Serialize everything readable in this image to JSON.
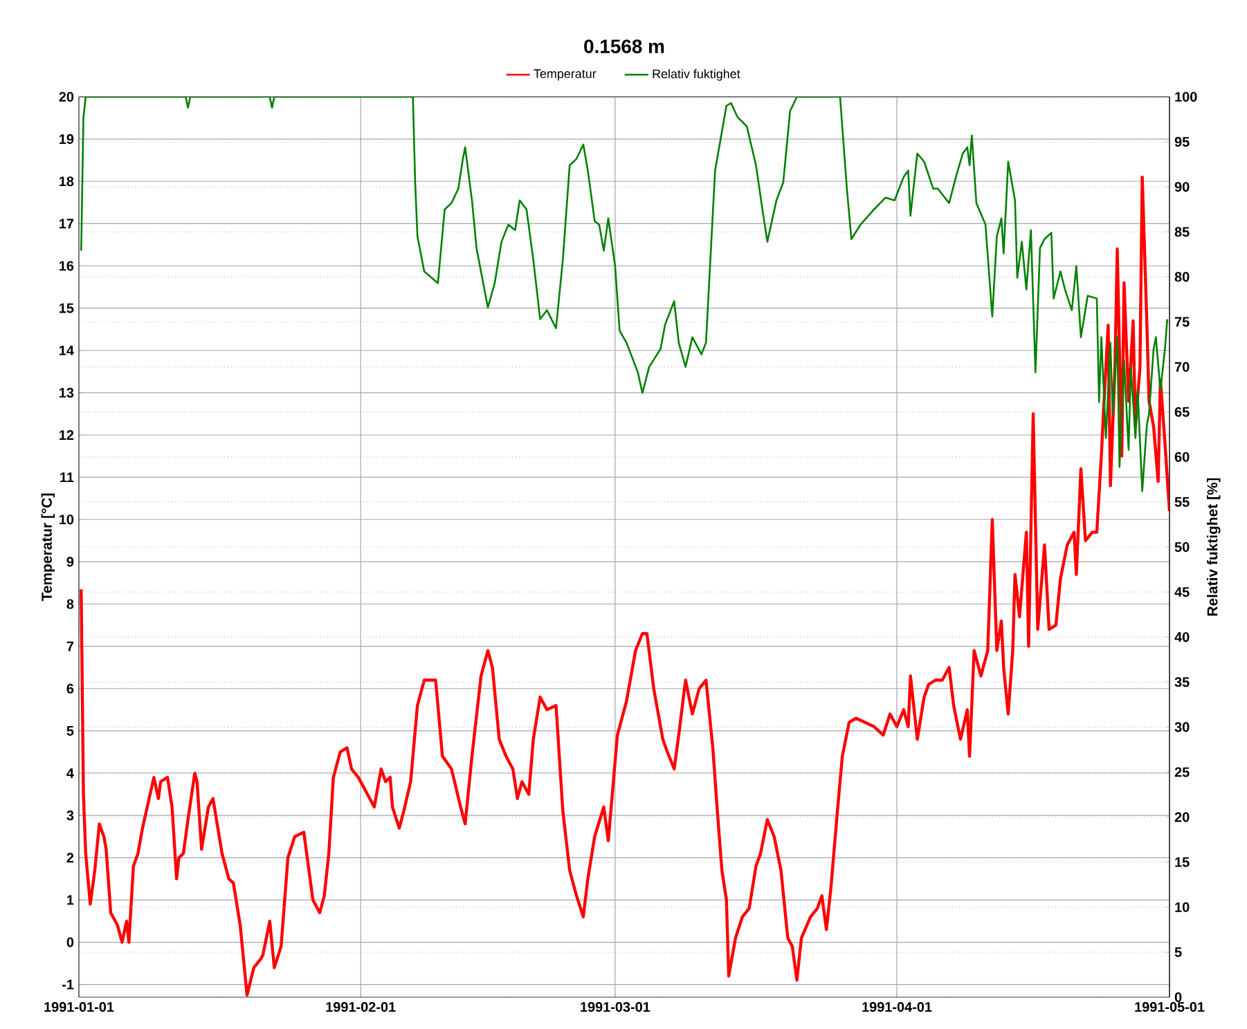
{
  "chart_data": {
    "type": "line",
    "title": "0.1568 m",
    "ylabel": "Temperatur [°C]",
    "y2label": "Relativ fuktighet [%]",
    "xlim": [
      "1991-01-01",
      "1991-05-01"
    ],
    "xticks": [
      "1991-01-01",
      "1991-02-01",
      "1991-03-01",
      "1991-04-01",
      "1991-05-01"
    ],
    "ylim": [
      -1.3,
      20
    ],
    "yticks": [
      -1,
      0,
      1,
      2,
      3,
      4,
      5,
      6,
      7,
      8,
      9,
      10,
      11,
      12,
      13,
      14,
      15,
      16,
      17,
      18,
      19,
      20
    ],
    "y2lim": [
      0,
      100
    ],
    "y2ticks": [
      0,
      5,
      10,
      15,
      20,
      25,
      30,
      35,
      40,
      45,
      50,
      55,
      60,
      65,
      70,
      75,
      80,
      85,
      90,
      95,
      100
    ],
    "grid": true,
    "legend": "top",
    "line_style": "solid",
    "series": [
      {
        "name": "Temperatur",
        "color": "#ff0000",
        "axis": "y",
        "x": [
          "1991-01-01T06:00",
          "1991-01-01T12:00",
          "1991-01-01T18:00",
          "1991-01-02T06:00",
          "1991-01-02T18:00",
          "1991-01-03T06:00",
          "1991-01-03T18:00",
          "1991-01-04",
          "1991-01-04T12:00",
          "1991-01-05T06:00",
          "1991-01-05T18:00",
          "1991-01-06T06:00",
          "1991-01-06T12:00",
          "1991-01-07",
          "1991-01-07T12:00",
          "1991-01-08",
          "1991-01-09T06:00",
          "1991-01-09T18:00",
          "1991-01-10",
          "1991-01-10T18:00",
          "1991-01-11T06:00",
          "1991-01-11T18:00",
          "1991-01-12",
          "1991-01-12T12:00",
          "1991-01-13",
          "1991-01-13T18:00",
          "1991-01-14",
          "1991-01-14T12:00",
          "1991-01-15T06:00",
          "1991-01-15T18:00",
          "1991-01-16T18:00",
          "1991-01-17T12:00",
          "1991-01-18",
          "1991-01-18T18:00",
          "1991-01-19T12:00",
          "1991-01-20T06:00",
          "1991-01-21",
          "1991-01-21T06:00",
          "1991-01-22",
          "1991-01-22T12:00",
          "1991-01-23T06:00",
          "1991-01-24",
          "1991-01-24T18:00",
          "1991-01-25T18:00",
          "1991-01-26T06:00",
          "1991-01-26T18:00",
          "1991-01-27T12:00",
          "1991-01-28",
          "1991-01-28T12:00",
          "1991-01-29",
          "1991-01-29T18:00",
          "1991-01-30T12:00",
          "1991-01-31",
          "1991-01-31T18:00",
          "1991-02-02",
          "1991-02-02T12:00",
          "1991-02-03T06:00",
          "1991-02-03T18:00",
          "1991-02-04T06:00",
          "1991-02-04T12:00",
          "1991-02-05T06:00",
          "1991-02-05T18:00",
          "1991-02-06T12:00",
          "1991-02-07T06:00",
          "1991-02-08",
          "1991-02-09T06:00",
          "1991-02-10",
          "1991-02-11",
          "1991-02-12",
          "1991-02-12T12:00",
          "1991-02-13T06:00",
          "1991-02-14T06:00",
          "1991-02-15",
          "1991-02-15T12:00",
          "1991-02-16T06:00",
          "1991-02-17",
          "1991-02-17T18:00",
          "1991-02-18T06:00",
          "1991-02-18T18:00",
          "1991-02-19T12:00",
          "1991-02-20",
          "1991-02-20T18:00",
          "1991-02-21T12:00",
          "1991-02-22T12:00",
          "1991-02-23T06:00",
          "1991-02-24",
          "1991-02-24T18:00",
          "1991-02-25T12:00",
          "1991-02-26",
          "1991-02-26T18:00",
          "1991-02-27T18:00",
          "1991-02-28T06:00",
          "1991-03-01T06:00",
          "1991-03-02T06:00",
          "1991-03-03T06:00",
          "1991-03-04",
          "1991-03-04T12:00",
          "1991-03-05T06:00",
          "1991-03-06T06:00",
          "1991-03-06T18:00",
          "1991-03-07T12:00",
          "1991-03-08",
          "1991-03-08T18:00",
          "1991-03-09T12:00",
          "1991-03-10T06:00",
          "1991-03-11",
          "1991-03-11T18:00",
          "1991-03-12T06:00",
          "1991-03-12T18:00",
          "1991-03-13T06:00",
          "1991-03-13T12:00",
          "1991-03-14T06:00",
          "1991-03-15",
          "1991-03-15T18:00",
          "1991-03-16T12:00",
          "1991-03-17",
          "1991-03-17T18:00",
          "1991-03-18T12:00",
          "1991-03-19T06:00",
          "1991-03-20",
          "1991-03-20T12:00",
          "1991-03-21",
          "1991-03-21T12:00",
          "1991-03-22T12:00",
          "1991-03-23T06:00",
          "1991-03-23T18:00",
          "1991-03-24T06:00",
          "1991-03-24T18:00",
          "1991-03-25T12:00",
          "1991-03-26",
          "1991-03-26T18:00",
          "1991-03-27T12:00",
          "1991-03-28T12:00",
          "1991-03-29T12:00",
          "1991-03-30T12:00",
          "1991-03-31T06:00",
          "1991-04-01",
          "1991-04-01T18:00",
          "1991-04-02T06:00",
          "1991-04-02T12:00",
          "1991-04-03T06:00",
          "1991-04-04",
          "1991-04-04T12:00",
          "1991-04-05T06:00",
          "1991-04-06",
          "1991-04-06T18:00",
          "1991-04-07T06:00",
          "1991-04-08",
          "1991-04-08T18:00",
          "1991-04-09",
          "1991-04-09T12:00",
          "1991-04-10T06:00",
          "1991-04-11",
          "1991-04-11T12:00",
          "1991-04-12",
          "1991-04-12T12:00",
          "1991-04-12T18:00",
          "1991-04-13T06:00",
          "1991-04-13T18:00",
          "1991-04-14",
          "1991-04-14T12:00",
          "1991-04-15T06:00",
          "1991-04-15T12:00",
          "1991-04-16",
          "1991-04-16T12:00",
          "1991-04-17T06:00",
          "1991-04-17T18:00",
          "1991-04-18T12:00",
          "1991-04-19",
          "1991-04-19T18:00",
          "1991-04-20T12:00",
          "1991-04-20T18:00",
          "1991-04-21T06:00",
          "1991-04-21T18:00",
          "1991-04-22T12:00",
          "1991-04-23",
          "1991-04-23T12:00",
          "1991-04-23T18:00",
          "1991-04-24T06:00",
          "1991-04-24T12:00",
          "1991-04-25",
          "1991-04-25T06:00",
          "1991-04-25T18:00",
          "1991-04-26",
          "1991-04-26T12:00",
          "1991-04-27",
          "1991-04-27T06:00",
          "1991-04-27T18:00",
          "1991-04-28",
          "1991-04-28T12:00",
          "1991-04-28T18:00",
          "1991-04-29T06:00",
          "1991-04-29T18:00",
          "1991-04-30",
          "1991-04-30T12:00",
          "1991-05-01"
        ],
        "values": [
          8.35,
          3.5,
          2.1,
          0.9,
          1.7,
          2.8,
          2.5,
          2.2,
          0.7,
          0.4,
          0.0,
          0.5,
          0.0,
          1.8,
          2.1,
          2.7,
          3.9,
          3.4,
          3.8,
          3.9,
          3.2,
          1.5,
          2.0,
          2.1,
          2.9,
          4.0,
          3.8,
          2.2,
          3.2,
          3.4,
          2.1,
          1.5,
          1.4,
          0.4,
          -1.25,
          -0.6,
          -0.4,
          -0.3,
          0.5,
          -0.6,
          -0.1,
          2.0,
          2.5,
          2.6,
          1.8,
          1.0,
          0.7,
          1.1,
          2.1,
          3.9,
          4.5,
          4.6,
          4.1,
          3.9,
          3.4,
          3.2,
          4.1,
          3.8,
          3.9,
          3.2,
          2.7,
          3.1,
          3.8,
          5.6,
          6.2,
          6.2,
          4.4,
          4.1,
          3.2,
          2.8,
          4.4,
          6.3,
          6.9,
          6.5,
          4.8,
          4.4,
          4.1,
          3.4,
          3.8,
          3.5,
          4.8,
          5.8,
          5.5,
          5.6,
          3.1,
          1.7,
          1.1,
          0.6,
          1.5,
          2.5,
          3.2,
          2.4,
          4.9,
          5.7,
          6.9,
          7.3,
          7.3,
          6.0,
          4.8,
          4.5,
          4.1,
          4.9,
          6.2,
          5.4,
          6.0,
          6.2,
          4.6,
          3.1,
          1.7,
          1.0,
          -0.8,
          0.1,
          0.6,
          0.8,
          1.8,
          2.1,
          2.9,
          2.5,
          1.7,
          0.1,
          -0.1,
          -0.9,
          0.1,
          0.6,
          0.8,
          1.1,
          0.3,
          1.3,
          3.2,
          4.4,
          5.2,
          5.3,
          5.2,
          5.1,
          4.9,
          5.4,
          5.1,
          5.5,
          5.1,
          6.3,
          4.8,
          5.8,
          6.1,
          6.2,
          6.2,
          6.5,
          5.6,
          4.8,
          5.5,
          4.4,
          6.9,
          6.3,
          6.9,
          10.0,
          6.9,
          7.6,
          6.5,
          5.4,
          6.9,
          8.7,
          7.7,
          9.7,
          7.0,
          12.5,
          7.4,
          9.4,
          7.4,
          7.5,
          8.6,
          9.4,
          9.7,
          8.7,
          11.2,
          9.5,
          9.7,
          9.7,
          11.5,
          12.6,
          14.6,
          10.8,
          13.6,
          16.4,
          11.5,
          15.6,
          12.8,
          14.7,
          12.2,
          13.6,
          18.1,
          14.7,
          12.8,
          12.2,
          10.9,
          13.3,
          11.8,
          10.2
        ]
      },
      {
        "name": "Relativ fuktighet",
        "color": "#008000",
        "axis": "y2",
        "x": [
          "1991-01-01T06:00",
          "1991-01-01T12:00",
          "1991-01-01T18:00",
          "1991-01-12T18:00",
          "1991-01-13",
          "1991-01-13T06:00",
          "1991-01-22",
          "1991-01-22T06:00",
          "1991-01-22T12:00",
          "1991-02-06T18:00",
          "1991-02-07",
          "1991-02-07T06:00",
          "1991-02-08",
          "1991-02-09T12:00",
          "1991-02-10T06:00",
          "1991-02-11",
          "1991-02-11T18:00",
          "1991-02-12T06:00",
          "1991-02-12T12:00",
          "1991-02-13T06:00",
          "1991-02-13T18:00",
          "1991-02-15",
          "1991-02-15T18:00",
          "1991-02-16T12:00",
          "1991-02-17T06:00",
          "1991-02-18",
          "1991-02-18T12:00",
          "1991-02-19T06:00",
          "1991-02-20",
          "1991-02-20T18:00",
          "1991-02-21T12:00",
          "1991-02-22T12:00",
          "1991-02-23T06:00",
          "1991-02-24",
          "1991-02-24T18:00",
          "1991-02-25T12:00",
          "1991-02-26",
          "1991-02-26T18:00",
          "1991-02-27T06:00",
          "1991-02-27T18:00",
          "1991-02-28T06:00",
          "1991-03-01",
          "1991-03-01T12:00",
          "1991-03-02T06:00",
          "1991-03-03T12:00",
          "1991-03-04",
          "1991-03-04T18:00",
          "1991-03-06",
          "1991-03-06T12:00",
          "1991-03-07T12:00",
          "1991-03-08",
          "1991-03-08T18:00",
          "1991-03-09T12:00",
          "1991-03-10T12:00",
          "1991-03-11",
          "1991-03-12",
          "1991-03-13T06:00",
          "1991-03-13T18:00",
          "1991-03-14T12:00",
          "1991-03-15T12:00",
          "1991-03-16T12:00",
          "1991-03-17T06:00",
          "1991-03-17T18:00",
          "1991-03-18T18:00",
          "1991-03-19T12:00",
          "1991-03-20T06:00",
          "1991-03-21",
          "1991-03-25T18:00",
          "1991-03-26T12:00",
          "1991-03-27",
          "1991-03-28",
          "1991-03-29T12:00",
          "1991-03-30T18:00",
          "1991-03-31T18:00",
          "1991-04-01T18:00",
          "1991-04-02T06:00",
          "1991-04-02T12:00",
          "1991-04-03T06:00",
          "1991-04-04",
          "1991-04-05",
          "1991-04-05T12:00",
          "1991-04-06T18:00",
          "1991-04-07T12:00",
          "1991-04-08T06:00",
          "1991-04-08T18:00",
          "1991-04-09",
          "1991-04-09T06:00",
          "1991-04-09T18:00",
          "1991-04-10T18:00",
          "1991-04-11T12:00",
          "1991-04-12",
          "1991-04-12T12:00",
          "1991-04-12T18:00",
          "1991-04-13T06:00",
          "1991-04-14",
          "1991-04-14T06:00",
          "1991-04-14T18:00",
          "1991-04-15T06:00",
          "1991-04-15T18:00",
          "1991-04-16T06:00",
          "1991-04-16T18:00",
          "1991-04-17T06:00",
          "1991-04-18",
          "1991-04-18T06:00",
          "1991-04-19",
          "1991-04-19T12:00",
          "1991-04-20T06:00",
          "1991-04-20T18:00",
          "1991-04-21T06:00",
          "1991-04-22",
          "1991-04-23",
          "1991-04-23T06:00",
          "1991-04-23T12:00",
          "1991-04-24",
          "1991-04-24T12:00",
          "1991-04-24T18:00",
          "1991-04-25T06:00",
          "1991-04-25T12:00",
          "1991-04-26",
          "1991-04-26T12:00",
          "1991-04-26T18:00",
          "1991-04-27T06:00",
          "1991-04-27T12:00",
          "1991-04-28",
          "1991-04-28T12:00",
          "1991-04-28T18:00",
          "1991-04-29T06:00",
          "1991-04-29T12:00",
          "1991-04-30",
          "1991-04-30T12:00",
          "1991-04-30T18:00"
        ],
        "values": [
          82.9,
          97.7,
          100,
          100,
          98.8,
          100,
          100,
          98.8,
          100,
          100,
          90.5,
          84.5,
          80.6,
          79.3,
          87.5,
          88.2,
          89.8,
          93.1,
          94.4,
          88.5,
          83.2,
          76.6,
          79.3,
          83.9,
          85.8,
          85.2,
          88.5,
          87.5,
          81.9,
          75.3,
          76.3,
          74.3,
          81.9,
          92.4,
          93.1,
          94.7,
          91.8,
          86.2,
          85.8,
          82.9,
          86.5,
          81.2,
          74.0,
          72.7,
          69.4,
          67.1,
          70.0,
          72.0,
          74.7,
          77.3,
          72.7,
          70.0,
          73.3,
          71.4,
          72.7,
          91.8,
          99.0,
          99.3,
          97.7,
          96.7,
          92.4,
          87.2,
          83.9,
          88.5,
          90.5,
          98.4,
          100,
          100,
          89.8,
          84.2,
          85.8,
          87.5,
          88.8,
          88.5,
          91.1,
          91.8,
          86.8,
          93.7,
          92.8,
          89.8,
          89.8,
          88.2,
          91.1,
          93.7,
          94.4,
          92.4,
          95.7,
          88.2,
          85.8,
          75.6,
          84.5,
          86.5,
          82.6,
          92.8,
          88.5,
          79.9,
          83.9,
          78.6,
          85.2,
          69.4,
          83.2,
          84.2,
          84.9,
          77.6,
          80.6,
          78.6,
          76.3,
          81.2,
          73.3,
          77.9,
          77.6,
          66.1,
          73.3,
          62.1,
          72.7,
          64.8,
          73.3,
          58.9,
          70.7,
          60.8,
          70.0,
          62.1,
          67.4,
          56.2,
          63.5,
          64.8,
          72.0,
          73.3,
          67.4,
          72.0,
          75.3
        ]
      }
    ]
  }
}
